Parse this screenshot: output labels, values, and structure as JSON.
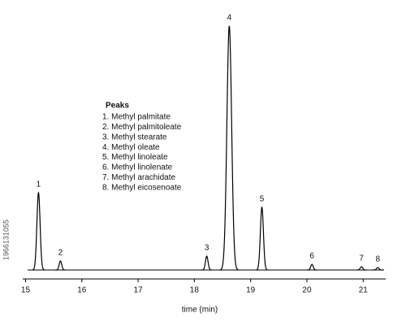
{
  "chart_data": {
    "type": "chromatogram",
    "x_label": "time (min)",
    "xlim": [
      14.95,
      21.4
    ],
    "xticks": [
      15,
      16,
      17,
      18,
      19,
      20,
      21
    ],
    "ylim": [
      0,
      100
    ],
    "color": "#000000",
    "legend_title": "Peaks",
    "peaks": [
      {
        "label": "1",
        "name": "1. Methyl palmitate",
        "time": 15.23,
        "height": 31.7
      },
      {
        "label": "2",
        "name": "2. Methyl palmitoleate",
        "time": 15.62,
        "height": 3.7
      },
      {
        "label": "3",
        "name": "3. Methyl stearate",
        "time": 18.22,
        "height": 5.7
      },
      {
        "label": "4",
        "name": "4. Methyl oleate",
        "time": 18.62,
        "height": 100
      },
      {
        "label": "5",
        "name": "5. Methyl linoleate",
        "time": 19.2,
        "height": 25.7
      },
      {
        "label": "6",
        "name": "6. Methyl linolenate",
        "time": 20.09,
        "height": 2.3
      },
      {
        "label": "7",
        "name": "7. Methyl arachidate",
        "time": 20.97,
        "height": 1.3
      },
      {
        "label": "8",
        "name": "8. Methyl eicosenoate",
        "time": 21.26,
        "height": 1.0
      }
    ]
  },
  "watermark_id": "1966131055"
}
